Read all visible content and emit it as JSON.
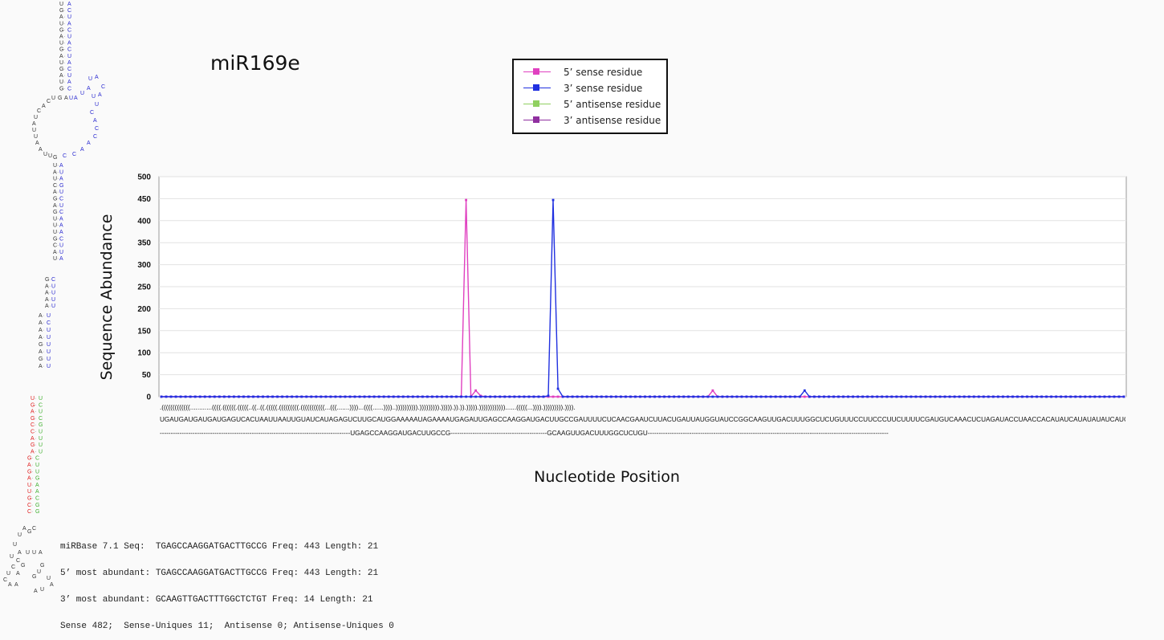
{
  "title": "miR169e",
  "legend": [
    {
      "label": "5’ sense residue",
      "color": "#e040c0"
    },
    {
      "label": "3’ sense residue",
      "color": "#2030e0"
    },
    {
      "label": "5’ antisense residue",
      "color": "#90d060"
    },
    {
      "label": "3’ antisense residue",
      "color": "#9030a0"
    }
  ],
  "axes": {
    "ylabel": "Sequence Abundance",
    "xlabel": "Nucleotide Position",
    "yticks": [
      "0",
      "50",
      "100",
      "150",
      "200",
      "250",
      "300",
      "350",
      "400",
      "450",
      "500"
    ]
  },
  "sequence": {
    "structure": ".(((((((((((((............((((.((((((.(((((..((..((.(((((.(((((((((.(((((((((((...(((.......))))...((((......))))..)))))))))).))))))))).))))).)).)).))))).))))))))))))......(((((...)))).))))))))).)))).",
    "bases": "UGAUGAUGAUGAUGAGUCACUAAUUAAUUGUAUCAUAGAGUCUUGCAUGGAAAAAUAGAAAAUGAGAUUGAGCCAAGGAUGACUUGCCGAUUUUCUCAACGAAUCUUACUGAUUAUGGUAUCCGGCAAGUUGACUUUGGCUCUGUUUCCUUCCCUUCUUUUCGAUGUCAAACUCUAGAUACCUAACCACAUAUCAUAUAUAUCAUCAUCAUUCAUCA",
    "reads": "---------------------------------------------------------------------------------------UGAGCCAAGGAUGACUUGCCG--------------------------------------------GCAAGUUGACUUUGGCUCUGU--------------------------------------------------------------------------------------------------------------"
  },
  "stats": [
    "miRBase 7.1 Seq:  TGAGCCAAGGATGACTTGCCG Freq: 443 Length: 21",
    "5’ most abundant: TGAGCCAAGGATGACTTGCCG Freq: 443 Length: 21",
    "3’ most abundant: GCAAGTTGACTTTGGCTCTGT Freq: 14 Length: 21",
    "Sense 482;  Sense-Uniques 11;  Antisense 0; Antisense-Uniques 0"
  ],
  "chart_data": {
    "type": "line",
    "title": "miR169e",
    "xlabel": "Nucleotide Position",
    "ylabel": "Sequence Abundance",
    "ylim": [
      0,
      500
    ],
    "n_positions": 200,
    "grid": "horizontal",
    "legend_position": "top",
    "series": [
      {
        "name": "5’ sense residue",
        "color": "#e040c0",
        "points": [
          [
            62,
            0
          ],
          [
            63,
            447
          ],
          [
            64,
            0
          ],
          [
            65,
            14
          ],
          [
            66,
            2
          ],
          [
            114,
            14
          ]
        ]
      },
      {
        "name": "3’ sense residue",
        "color": "#2030e0",
        "points": [
          [
            80,
            2
          ],
          [
            81,
            447
          ],
          [
            82,
            18
          ],
          [
            83,
            0
          ],
          [
            133,
            14
          ]
        ]
      },
      {
        "name": "5’ antisense residue",
        "color": "#90d060",
        "points": []
      },
      {
        "name": "3’ antisense residue",
        "color": "#9030a0",
        "points": []
      }
    ]
  }
}
